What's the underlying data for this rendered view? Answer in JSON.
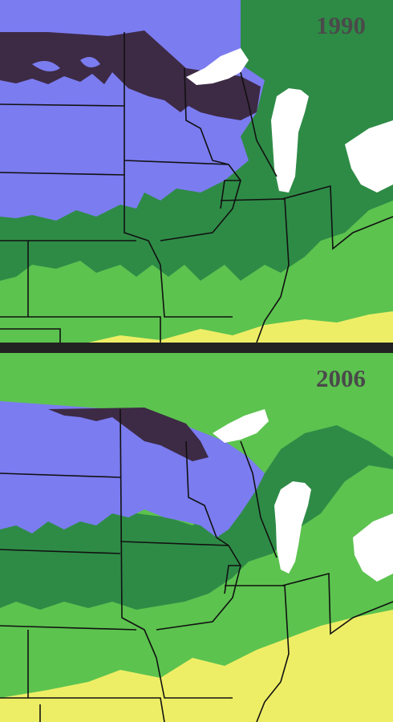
{
  "maps": [
    {
      "year": "1990",
      "zones": [
        "zone-3",
        "zone-4",
        "zone-5",
        "zone-6",
        "zone-7"
      ]
    },
    {
      "year": "2006",
      "zones": [
        "zone-3",
        "zone-4",
        "zone-5",
        "zone-6",
        "zone-7"
      ]
    }
  ],
  "colors": {
    "zone-3": "#3d2a45",
    "zone-4": "#7b7cf0",
    "zone-5": "#2e8b46",
    "zone-6": "#5cc34f",
    "zone-7": "#eeee66",
    "water": "#ffffff",
    "border": "#111111",
    "divider": "#222222"
  }
}
